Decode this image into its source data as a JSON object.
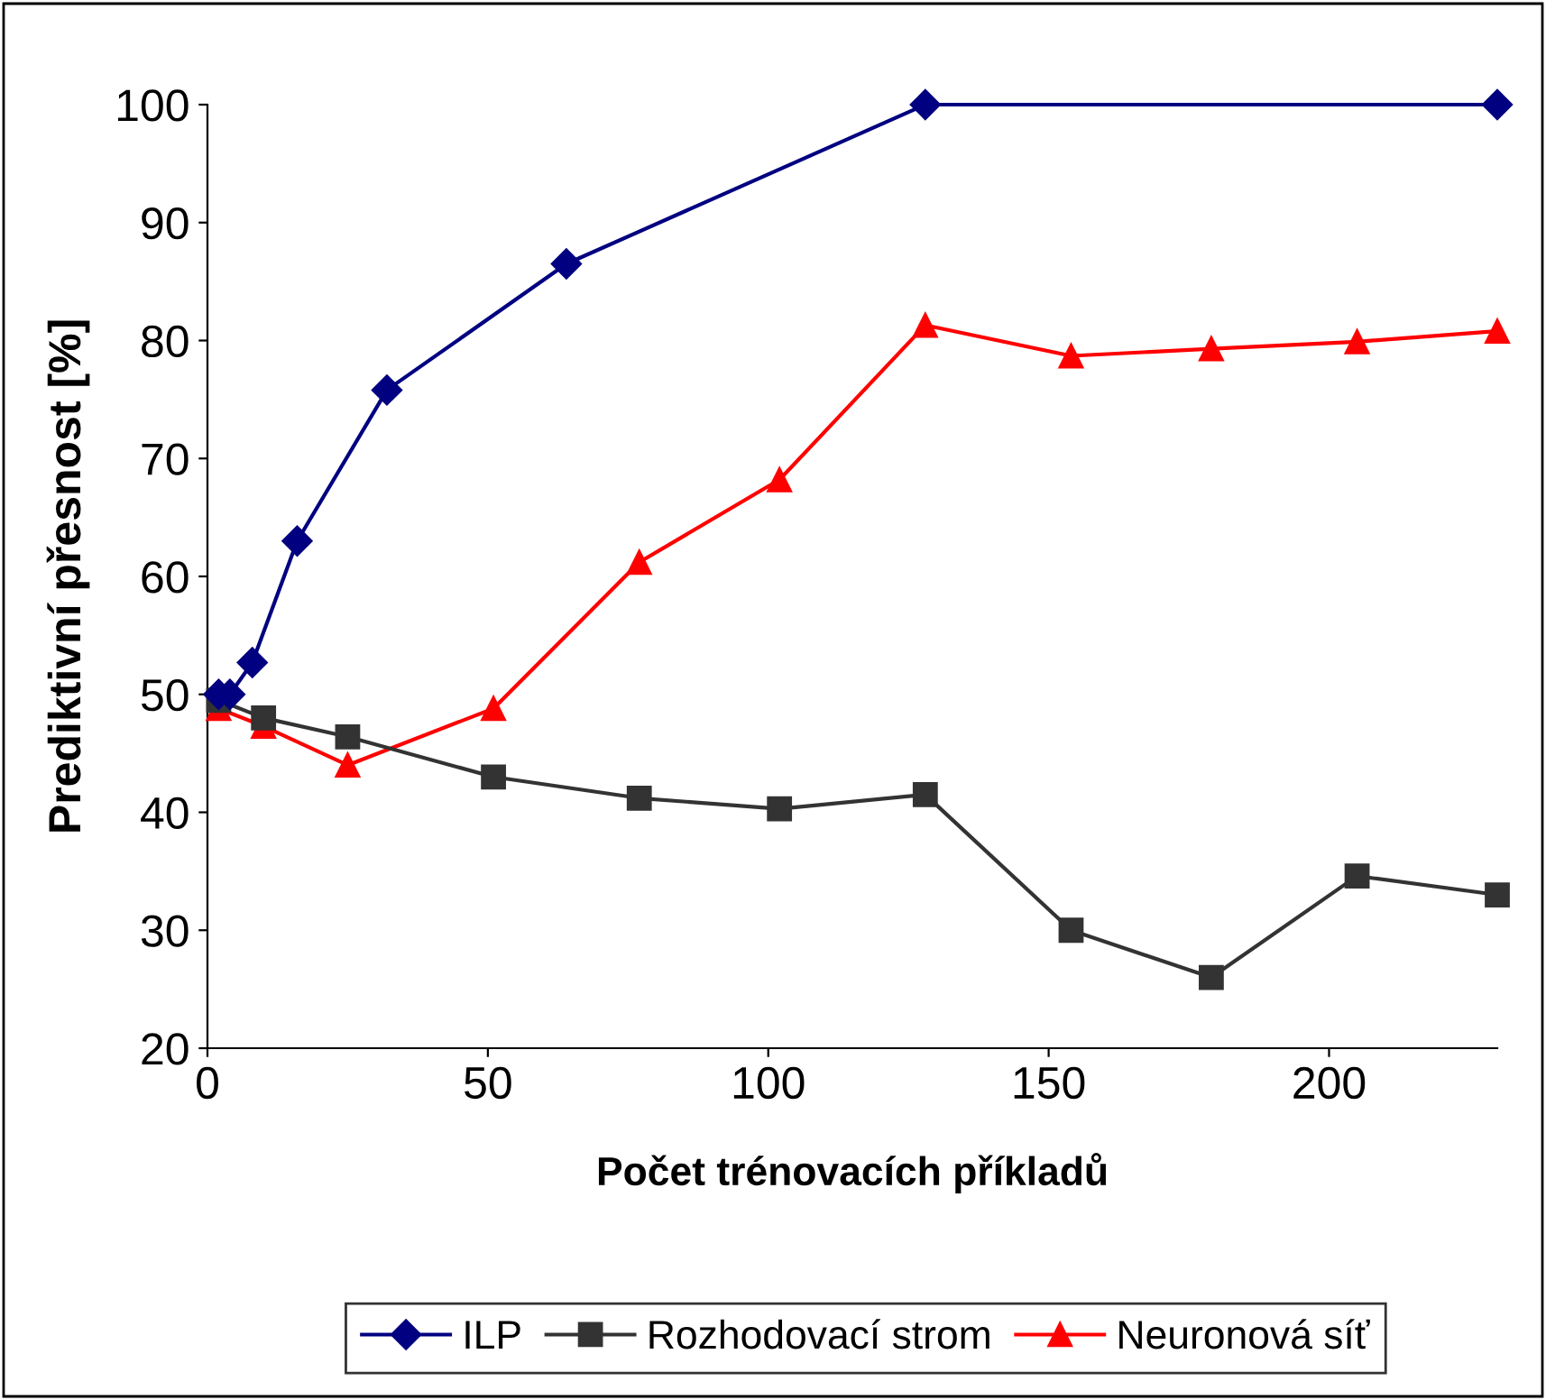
{
  "chart_data": {
    "type": "line",
    "xlabel": "Počet trénovacích příkladů",
    "ylabel": "Prediktivní přesnost [%]",
    "xlim": [
      0,
      230
    ],
    "xticks": [
      0,
      50,
      100,
      150,
      200
    ],
    "ylim": [
      20,
      100
    ],
    "yticks": [
      20,
      30,
      40,
      50,
      60,
      70,
      80,
      90,
      100
    ],
    "grid": false,
    "legend": "bottom",
    "line_style": "solid",
    "series": [
      {
        "name": "ILP",
        "color": "#000080",
        "marker": "diamond",
        "x": [
          2,
          4,
          8,
          16,
          32,
          64,
          128,
          230
        ],
        "values": [
          50,
          50,
          52.7,
          63,
          75.8,
          86.5,
          100,
          100
        ]
      },
      {
        "name": "Rozhodovací strom",
        "color": "#333333",
        "marker": "square",
        "x": [
          2,
          10,
          25,
          51,
          77,
          102,
          128,
          154,
          179,
          205,
          230
        ],
        "values": [
          49.5,
          48,
          46.4,
          43,
          41.2,
          40.3,
          41.5,
          30,
          26,
          34.6,
          33
        ]
      },
      {
        "name": "Neuronová síť",
        "color": "#ff0000",
        "marker": "triangle",
        "x": [
          2,
          10,
          25,
          51,
          77,
          102,
          128,
          154,
          179,
          205,
          230
        ],
        "values": [
          48.8,
          47.3,
          44,
          48.8,
          61.2,
          68.2,
          81.3,
          78.7,
          79.3,
          79.9,
          80.8
        ]
      }
    ]
  }
}
